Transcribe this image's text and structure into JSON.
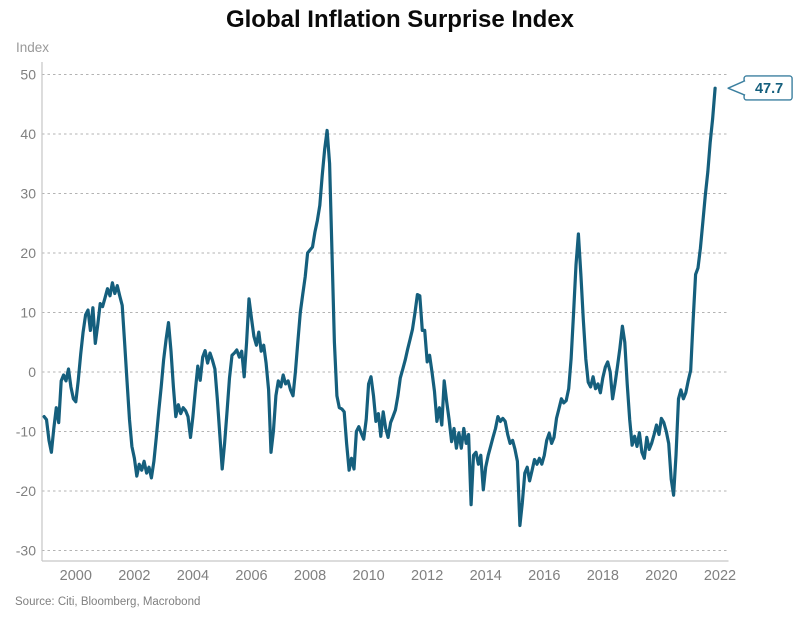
{
  "title": "Global Inflation Surprise Index",
  "y_axis_label": "Index",
  "source": "Source: Citi, Bloomberg, Macrobond",
  "callout": {
    "label": "47.7"
  },
  "colors": {
    "line": "#155f7d",
    "callout_border": "#3b7f9f",
    "callout_text": "#155f7d",
    "grid": "#b3b3b3",
    "axis": "#c6c6c6",
    "tick_text": "#808080",
    "title_text": "#0a0a0a"
  },
  "chart_data": {
    "type": "line",
    "title": "Global Inflation Surprise Index",
    "xlabel": "",
    "ylabel": "Index",
    "ylim": [
      -30,
      50
    ],
    "xlim": [
      1998.85,
      2022.3
    ],
    "grid": "horizontal-dashed",
    "legend": "none",
    "y_ticks": [
      50,
      40,
      30,
      20,
      10,
      0,
      -10,
      -20,
      -30
    ],
    "x_ticks": [
      2000,
      2002,
      2004,
      2006,
      2008,
      2010,
      2012,
      2014,
      2016,
      2018,
      2020,
      2022
    ],
    "series_name": "Global Inflation Surprise Index",
    "x_start": 1998.9167,
    "x_step_years": 0.083333,
    "last_value_label": "47.7",
    "last_value": 47.7,
    "values": [
      -7.5,
      -8,
      -11.5,
      -13.5,
      -9.5,
      -6,
      -8.5,
      -1.5,
      -0.5,
      -1.5,
      0.5,
      -2.5,
      -4.5,
      -5,
      -1.5,
      3,
      6.7,
      9.6,
      10.4,
      7,
      10.8,
      4.8,
      8,
      11.5,
      11,
      12.5,
      14,
      12.8,
      15,
      13.2,
      14.5,
      12.8,
      11.2,
      5,
      -1.5,
      -8,
      -12.5,
      -14.5,
      -17.5,
      -15.5,
      -16.5,
      -15,
      -17,
      -16,
      -17.8,
      -15,
      -11,
      -6.5,
      -2.5,
      2,
      5.5,
      8.3,
      3.5,
      -2.5,
      -7.5,
      -5.5,
      -7,
      -6,
      -6.5,
      -7.5,
      -11,
      -7.5,
      -3,
      1,
      -1.4,
      2.5,
      3.6,
      1.5,
      3.2,
      2,
      0.5,
      -4.5,
      -10.5,
      -16.3,
      -12,
      -6.5,
      -1,
      2.8,
      3.2,
      3.7,
      2.5,
      3.5,
      -0.8,
      5,
      12.3,
      9,
      6,
      4.5,
      6.7,
      3.5,
      4.5,
      1.5,
      -3,
      -13.5,
      -10,
      -4,
      -1.5,
      -2.5,
      -0.5,
      -2,
      -1.5,
      -3,
      -4,
      0,
      5,
      10,
      13,
      16,
      20,
      20.5,
      21,
      23.5,
      25.5,
      28,
      33,
      37.5,
      40.6,
      35,
      20,
      5,
      -4,
      -6,
      -6.2,
      -6.7,
      -12,
      -16.5,
      -14.5,
      -16.3,
      -10,
      -9.2,
      -10.3,
      -11.3,
      -8,
      -2,
      -0.8,
      -4,
      -8.3,
      -7,
      -10.8,
      -6.7,
      -9.5,
      -11,
      -8.5,
      -7.5,
      -6.4,
      -4,
      -1,
      0.5,
      2,
      3.8,
      5.5,
      7.2,
      10,
      13,
      12.8,
      7,
      7,
      1.7,
      2.8,
      0,
      -3.3,
      -8.3,
      -6,
      -8.9,
      -1.5,
      -5,
      -8,
      -11.7,
      -9.5,
      -12.8,
      -10.2,
      -12.8,
      -9.5,
      -12,
      -10.5,
      -22.3,
      -14,
      -13.5,
      -15.5,
      -14,
      -19.8,
      -16,
      -14,
      -12.5,
      -11,
      -9.5,
      -7.5,
      -8.3,
      -7.8,
      -8.3,
      -10.5,
      -12,
      -11.5,
      -13,
      -15,
      -25.8,
      -22,
      -17,
      -16,
      -18.3,
      -16.5,
      -14.7,
      -15.5,
      -14.5,
      -15.5,
      -14,
      -11.5,
      -10.3,
      -12,
      -11,
      -7.8,
      -6.2,
      -4.5,
      -5.2,
      -4.8,
      -2.8,
      2.2,
      10,
      18,
      23.2,
      16.3,
      8.8,
      2.2,
      -1.7,
      -2.5,
      -0.8,
      -2.8,
      -2,
      -3.5,
      -1,
      0.8,
      1.7,
      0,
      -4.5,
      -2,
      1,
      4,
      7.7,
      5,
      -2,
      -8,
      -12.3,
      -10.8,
      -12.5,
      -10.2,
      -13.5,
      -14.5,
      -11,
      -13,
      -12,
      -10.5,
      -8.9,
      -10.5,
      -7.8,
      -8.5,
      -10,
      -12,
      -18,
      -20.7,
      -14,
      -4.5,
      -3,
      -4.5,
      -3.5,
      -1.5,
      0.3,
      8.6,
      16.4,
      17.5,
      20.8,
      25.3,
      29.7,
      33.6,
      38.6,
      42.5,
      47.7
    ]
  }
}
